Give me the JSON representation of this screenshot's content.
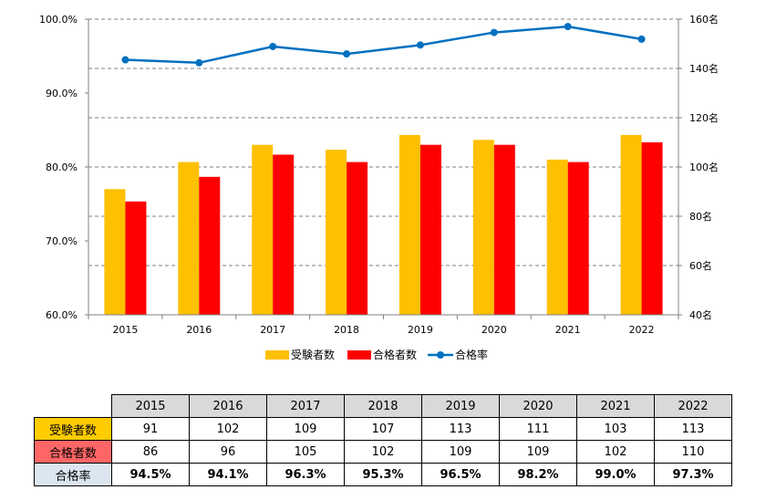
{
  "chart_data": {
    "type": "bar",
    "categories": [
      "2015",
      "2016",
      "2017",
      "2018",
      "2019",
      "2020",
      "2021",
      "2022"
    ],
    "series": [
      {
        "name": "受験者数",
        "type": "bar",
        "axis": "right",
        "color": "#ffc000",
        "values": [
          91,
          102,
          109,
          107,
          113,
          111,
          103,
          113
        ]
      },
      {
        "name": "合格者数",
        "type": "bar",
        "axis": "right",
        "color": "#ff0000",
        "values": [
          86,
          96,
          105,
          102,
          109,
          109,
          102,
          110
        ]
      },
      {
        "name": "合格率",
        "type": "line",
        "axis": "left",
        "color": "#0070c0",
        "values": [
          94.5,
          94.1,
          96.3,
          95.3,
          96.5,
          98.2,
          99.0,
          97.3
        ]
      }
    ],
    "left_axis": {
      "ylim": [
        60,
        100
      ],
      "ticks": [
        "60.0%",
        "70.0%",
        "80.0%",
        "90.0%",
        "100.0%"
      ],
      "tick_values": [
        60,
        70,
        80,
        90,
        100
      ]
    },
    "right_axis": {
      "ylim": [
        40,
        160
      ],
      "ticks": [
        "40名",
        "60名",
        "80名",
        "100名",
        "120名",
        "140名",
        "160名"
      ],
      "tick_values": [
        40,
        60,
        80,
        100,
        120,
        140,
        160
      ]
    },
    "grid": "dashed horizontal",
    "legend_position": "bottom"
  },
  "table": {
    "years": [
      "2015",
      "2016",
      "2017",
      "2018",
      "2019",
      "2020",
      "2021",
      "2022"
    ],
    "rows": [
      {
        "label": "受験者数",
        "values": [
          "91",
          "102",
          "109",
          "107",
          "113",
          "111",
          "103",
          "113"
        ]
      },
      {
        "label": "合格者数",
        "values": [
          "86",
          "96",
          "105",
          "102",
          "109",
          "109",
          "102",
          "110"
        ]
      },
      {
        "label": "合格率",
        "values": [
          "94.5%",
          "94.1%",
          "96.3%",
          "95.3%",
          "96.5%",
          "98.2%",
          "99.0%",
          "97.3%"
        ]
      }
    ]
  }
}
